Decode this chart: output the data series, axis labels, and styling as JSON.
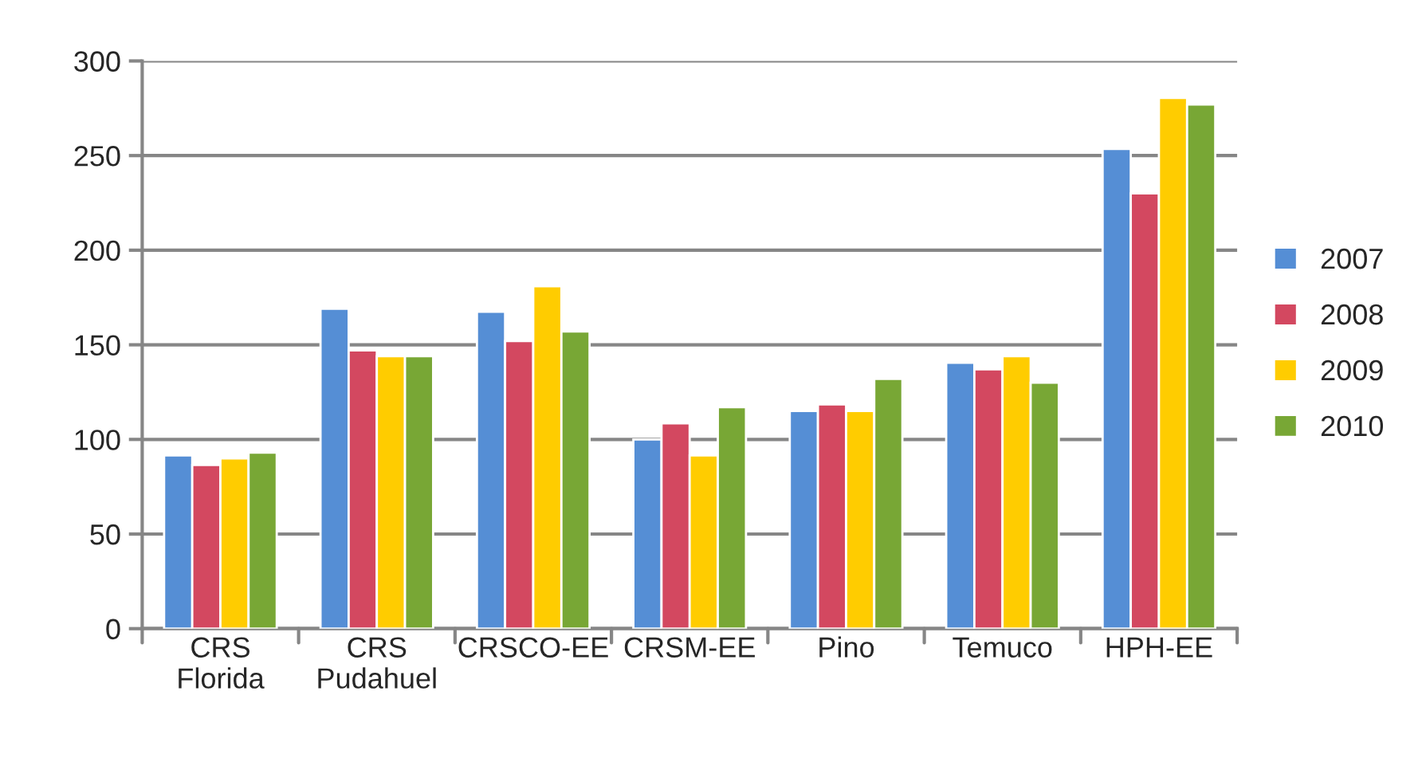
{
  "chart_data": {
    "type": "bar",
    "categories": [
      "CRS\nFlorida",
      "CRS\nPudahuel",
      "CRSCO-EE",
      "CRSM-EE",
      "Pino",
      "Temuco",
      "HPH-EE"
    ],
    "series": [
      {
        "name": "2007",
        "color": "#558ed5",
        "values": [
          91.5,
          169,
          167.5,
          100,
          115,
          140.5,
          253.5
        ]
      },
      {
        "name": "2008",
        "color": "#d34860",
        "values": [
          86.5,
          147,
          152,
          108.5,
          118.5,
          137,
          230
        ]
      },
      {
        "name": "2009",
        "color": "#ffcc00",
        "values": [
          90,
          144,
          181,
          91.5,
          115,
          144,
          280.5
        ]
      },
      {
        "name": "2010",
        "color": "#78a735",
        "values": [
          93,
          144,
          157,
          117,
          132,
          130,
          277
        ]
      }
    ],
    "ylim": [
      0,
      300
    ],
    "yticks": [
      0,
      50,
      100,
      150,
      200,
      250,
      300
    ],
    "grid": "y",
    "legend": "right"
  }
}
